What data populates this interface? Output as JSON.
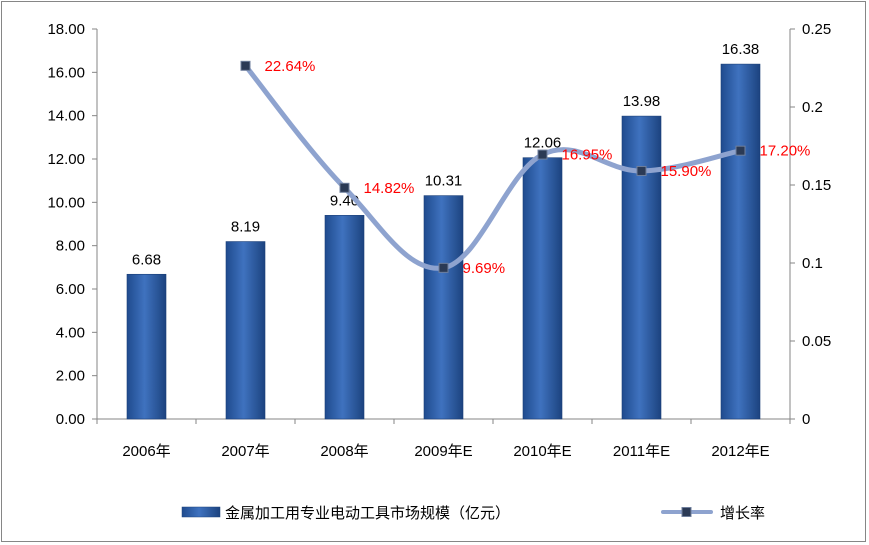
{
  "chart_data": {
    "type": "bar",
    "categories": [
      "2006年",
      "2007年",
      "2008年",
      "2009年E",
      "2010年E",
      "2011年E",
      "2012年E"
    ],
    "series": [
      {
        "name": "金属加工用专业电动工具市场规模（亿元）",
        "type": "bar",
        "axis": "left",
        "values": [
          6.68,
          8.19,
          9.4,
          10.31,
          12.06,
          13.98,
          16.38
        ],
        "labels": [
          "6.68",
          "8.19",
          "9.40",
          "10.31",
          "12.06",
          "13.98",
          "16.38"
        ],
        "color": "#2f5fa8"
      },
      {
        "name": "增长率",
        "type": "line",
        "axis": "right",
        "values": [
          null,
          0.2264,
          0.1482,
          0.0969,
          0.1695,
          0.159,
          0.172
        ],
        "labels": [
          "",
          "22.64%",
          "14.82%",
          "9.69%",
          "16.95%",
          "15.90%",
          "17.20%"
        ],
        "color": "#8ea3cf",
        "label_color": "#ff0000"
      }
    ],
    "y_left": {
      "range": [
        0,
        18
      ],
      "ticks": [
        "0.00",
        "2.00",
        "4.00",
        "6.00",
        "8.00",
        "10.00",
        "12.00",
        "14.00",
        "16.00",
        "18.00"
      ],
      "tick_values": [
        0,
        2,
        4,
        6,
        8,
        10,
        12,
        14,
        16,
        18
      ]
    },
    "y_right": {
      "range": [
        0,
        0.25
      ],
      "ticks": [
        "0",
        "0.05",
        "0.1",
        "0.15",
        "0.2",
        "0.25"
      ],
      "tick_values": [
        0,
        0.05,
        0.1,
        0.15,
        0.2,
        0.25
      ]
    },
    "grid": false,
    "legend": "bottom"
  }
}
